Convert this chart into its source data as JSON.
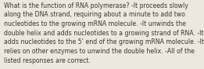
{
  "lines": [
    "What is the function of RNA polymerase? -It proceeds slowly",
    "along the DNA strand, requiring about a minute to add two",
    "nucleotides to the growing mRNA molecule. -It unwinds the",
    "double helix and adds nucleotides to a growing strand of RNA. -It",
    "adds nucleotides to the 5’ end of the growing mRNA molecule. -It",
    "relies on other enzymes to unwind the double helix. -All of the",
    "listed responses are correct."
  ],
  "font_size": 5.6,
  "text_color": "#3a3530",
  "bg_color": "#ede8df",
  "fig_width": 2.61,
  "fig_height": 0.88,
  "dpi": 100
}
